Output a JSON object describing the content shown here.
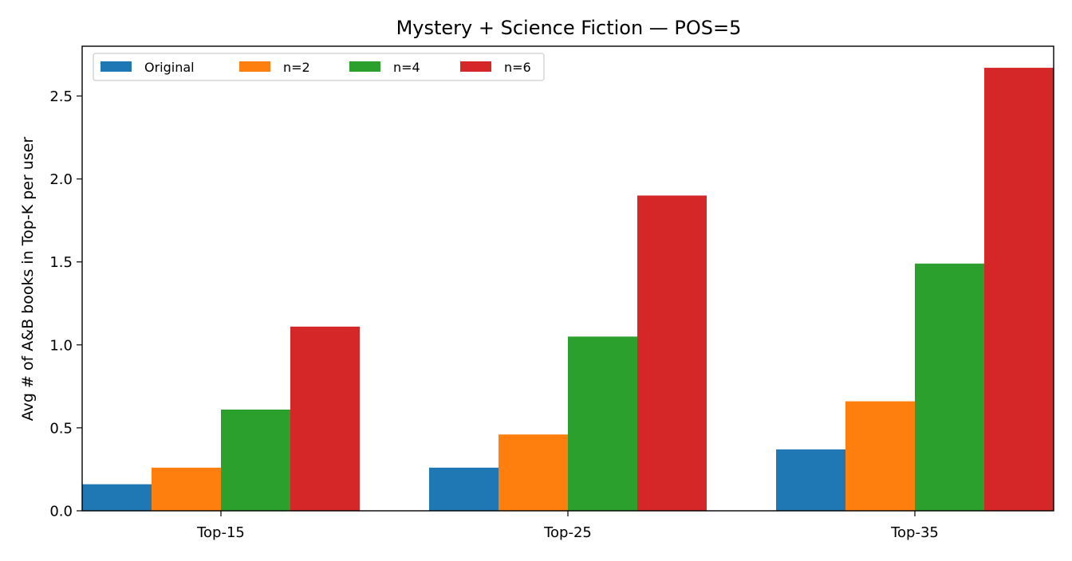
{
  "chart_data": {
    "type": "bar",
    "title": "Mystery + Science Fiction — POS=5",
    "xlabel": "",
    "ylabel": "Avg # of A&B books in Top-K per user",
    "categories": [
      "Top-15",
      "Top-25",
      "Top-35"
    ],
    "ylim": [
      0,
      2.8
    ],
    "yticks": [
      0.0,
      0.5,
      1.0,
      1.5,
      2.0,
      2.5
    ],
    "ytick_labels": [
      "0.0",
      "0.5",
      "1.0",
      "1.5",
      "2.0",
      "2.5"
    ],
    "grid": false,
    "legend_position": "top-left",
    "legend_columns": 4,
    "series": [
      {
        "name": "Original",
        "color": "#1f77b4",
        "values": [
          0.16,
          0.26,
          0.37
        ]
      },
      {
        "name": "n=2",
        "color": "#ff7f0e",
        "values": [
          0.26,
          0.46,
          0.66
        ]
      },
      {
        "name": "n=4",
        "color": "#2ca02c",
        "values": [
          0.61,
          1.05,
          1.49
        ]
      },
      {
        "name": "n=6",
        "color": "#d62728",
        "values": [
          1.11,
          1.9,
          2.67
        ]
      }
    ]
  }
}
